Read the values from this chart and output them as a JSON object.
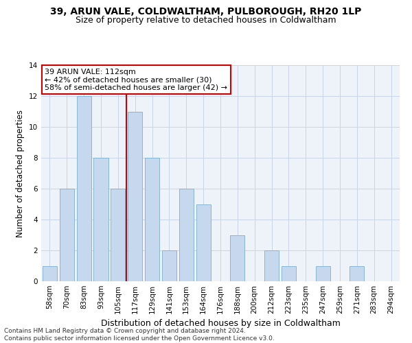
{
  "title1": "39, ARUN VALE, COLDWALTHAM, PULBOROUGH, RH20 1LP",
  "title2": "Size of property relative to detached houses in Coldwaltham",
  "xlabel": "Distribution of detached houses by size in Coldwaltham",
  "ylabel": "Number of detached properties",
  "categories": [
    "58sqm",
    "70sqm",
    "83sqm",
    "93sqm",
    "105sqm",
    "117sqm",
    "129sqm",
    "141sqm",
    "153sqm",
    "164sqm",
    "176sqm",
    "188sqm",
    "200sqm",
    "212sqm",
    "223sqm",
    "235sqm",
    "247sqm",
    "259sqm",
    "271sqm",
    "283sqm",
    "294sqm"
  ],
  "values": [
    1,
    6,
    12,
    8,
    6,
    11,
    8,
    2,
    6,
    5,
    0,
    3,
    0,
    2,
    1,
    0,
    1,
    0,
    1,
    0,
    0
  ],
  "bar_color": "#c5d8ed",
  "bar_edge_color": "#7aaed0",
  "vline_x": 4.5,
  "vline_color": "#cc0000",
  "annotation_text": "39 ARUN VALE: 112sqm\n← 42% of detached houses are smaller (30)\n58% of semi-detached houses are larger (42) →",
  "annotation_box_color": "#cc0000",
  "ylim": [
    0,
    14
  ],
  "yticks": [
    0,
    2,
    4,
    6,
    8,
    10,
    12,
    14
  ],
  "footer": "Contains HM Land Registry data © Crown copyright and database right 2024.\nContains public sector information licensed under the Open Government Licence v3.0.",
  "bg_color": "#eef2f9",
  "grid_color": "#c8d4e8",
  "title1_fontsize": 10,
  "title2_fontsize": 9,
  "xlabel_fontsize": 9,
  "ylabel_fontsize": 8.5,
  "tick_fontsize": 7.5,
  "ann_fontsize": 8,
  "footer_fontsize": 6.5
}
